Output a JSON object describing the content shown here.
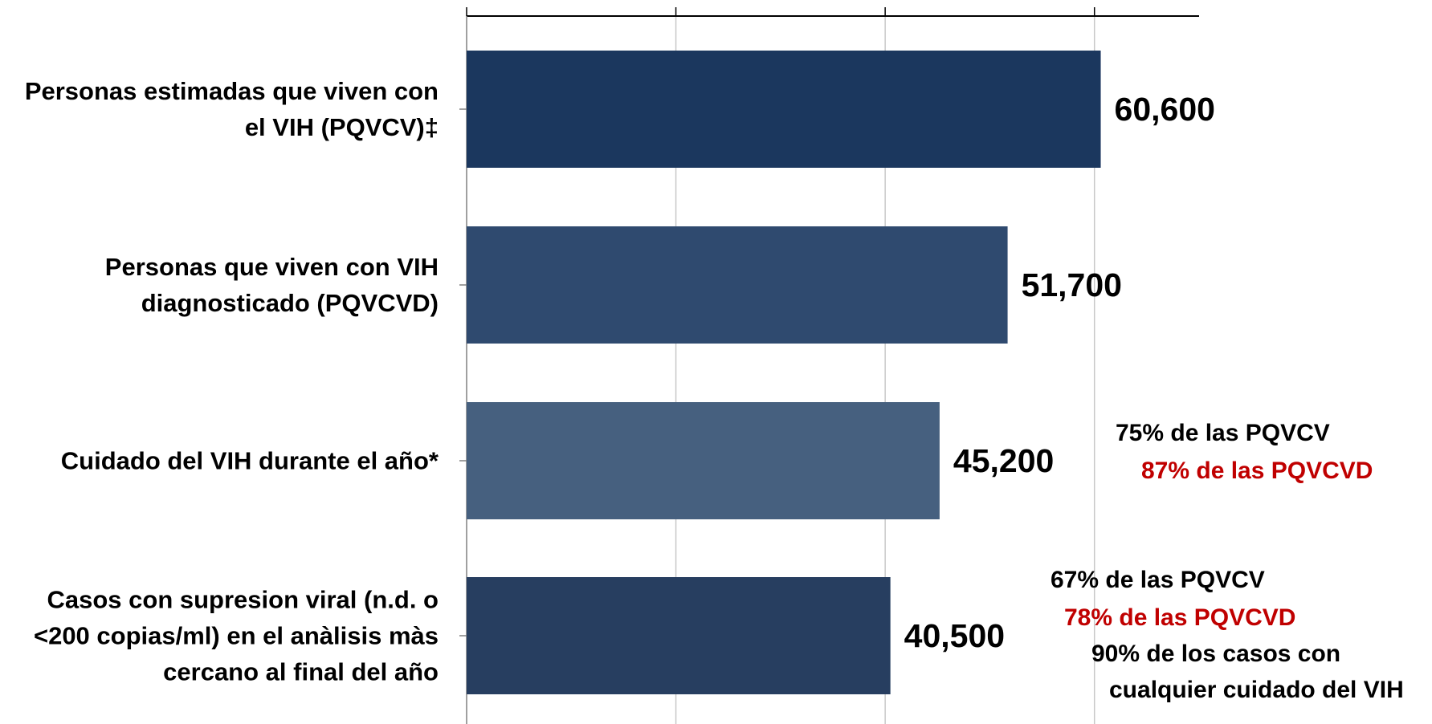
{
  "chart_data": {
    "type": "bar",
    "orientation": "horizontal",
    "categories": [
      "Personas estimadas que viven con el VIH (PQVCV)‡",
      "Personas que viven con VIH diagnosticado (PQVCVD)",
      "Cuidado del VIH durante el año*",
      "Casos con supresion viral (n.d. o <200 copias/ml) en el anàlisis màs cercano al final del año"
    ],
    "values": [
      60600,
      51700,
      45200,
      40500
    ],
    "value_labels": [
      "60,600",
      "51,700",
      "45,200",
      "40,500"
    ],
    "colors": [
      "#1b375e",
      "#2f4a6f",
      "#46607f",
      "#273e60"
    ],
    "xlim": [
      0,
      70000
    ],
    "xticks": [
      0,
      20000,
      40000,
      60000
    ],
    "grid": true,
    "annotations": [
      {
        "text": "75% de las PQVCV",
        "color": "#000000"
      },
      {
        "text": "87% de las PQVCVD",
        "color": "#c00000"
      },
      {
        "text": "67% de las PQVCV",
        "color": "#000000"
      },
      {
        "text": "78% de las PQVCVD",
        "color": "#c00000"
      },
      {
        "text": "90% de los casos con",
        "color": "#000000"
      },
      {
        "text": "cualquier cuidado del VIH",
        "color": "#000000"
      }
    ]
  }
}
